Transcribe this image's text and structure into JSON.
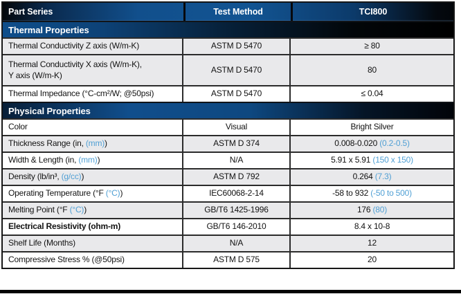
{
  "colors": {
    "header_blue": "#11518f",
    "band_blue": "#0e4a86",
    "light_blue": "#4f9fd4",
    "row_gray": "#e9e9eb",
    "border_dark": "#2b2b2b",
    "text_dark": "#121212",
    "bottom_bar": "#030303"
  },
  "header": {
    "columns": [
      "Part Series",
      "Test Method",
      "TCI800"
    ]
  },
  "sections": [
    {
      "title": "Thermal Properties",
      "rows": [
        {
          "label": "Thermal Conductivity Z axis (W/m-K)",
          "label_blue": "",
          "label_end": "",
          "method": "ASTM D 5470",
          "value": "≥ 80",
          "value_blue": "",
          "shade": "gray",
          "bold": false
        },
        {
          "label": "Thermal Conductivity X axis (W/m-K),\nY axis (W/m-K)",
          "label_blue": "",
          "label_end": "",
          "method": "ASTM D 5470",
          "value": "80",
          "value_blue": "",
          "shade": "gray",
          "bold": false
        },
        {
          "label": "Thermal Impedance (°C-cm²/W; @50psi)",
          "label_blue": "",
          "label_end": "",
          "method": "ASTM D 5470",
          "value": "≤ 0.04",
          "value_blue": "",
          "shade": "white",
          "bold": false
        }
      ]
    },
    {
      "title": "Physical Properties",
      "rows": [
        {
          "label": "Color",
          "label_blue": "",
          "label_end": "",
          "method": "Visual",
          "value": "Bright Silver",
          "value_blue": "",
          "shade": "white",
          "bold": false
        },
        {
          "label": "Thickness Range (in, ",
          "label_blue": "(mm)",
          "label_end": ")",
          "method": "ASTM D 374",
          "value": "0.008-0.020 ",
          "value_blue": "(0.2-0.5)",
          "shade": "gray",
          "bold": false
        },
        {
          "label": "Width & Length (in, ",
          "label_blue": "(mm)",
          "label_end": ")",
          "method": "N/A",
          "value": "5.91 x 5.91 ",
          "value_blue": "(150 x 150)",
          "shade": "white",
          "bold": false
        },
        {
          "label": "Density (lb/in³, ",
          "label_blue": "(g/cc)",
          "label_end": ")",
          "method": "ASTM D 792",
          "value": "0.264 ",
          "value_blue": "(7.3)",
          "shade": "gray",
          "bold": false
        },
        {
          "label": "Operating Temperature (°F ",
          "label_blue": "(°C)",
          "label_end": ")",
          "method": "IEC60068-2-14",
          "value": "-58 to 932 ",
          "value_blue": "(-50 to 500)",
          "shade": "white",
          "bold": false
        },
        {
          "label": "Melting Point (°F ",
          "label_blue": "(°C)",
          "label_end": ")",
          "method": "GB/T6 1425-1996",
          "value": "176 ",
          "value_blue": "(80)",
          "shade": "gray",
          "bold": false
        },
        {
          "label": "Electrical Resistivity (ohm-m)",
          "label_blue": "",
          "label_end": "",
          "method": "GB/T6 146-2010",
          "value": "8.4 x 10-8",
          "value_blue": "",
          "shade": "white",
          "bold": true
        },
        {
          "label": "Shelf Life (Months)",
          "label_blue": "",
          "label_end": "",
          "method": "N/A",
          "value": "12",
          "value_blue": "",
          "shade": "gray",
          "bold": false
        },
        {
          "label": "Compressive Stress % (@50psi)",
          "label_blue": "",
          "label_end": "",
          "method": "ASTM D 575",
          "value": "20",
          "value_blue": "",
          "shade": "white",
          "bold": false
        }
      ]
    }
  ]
}
